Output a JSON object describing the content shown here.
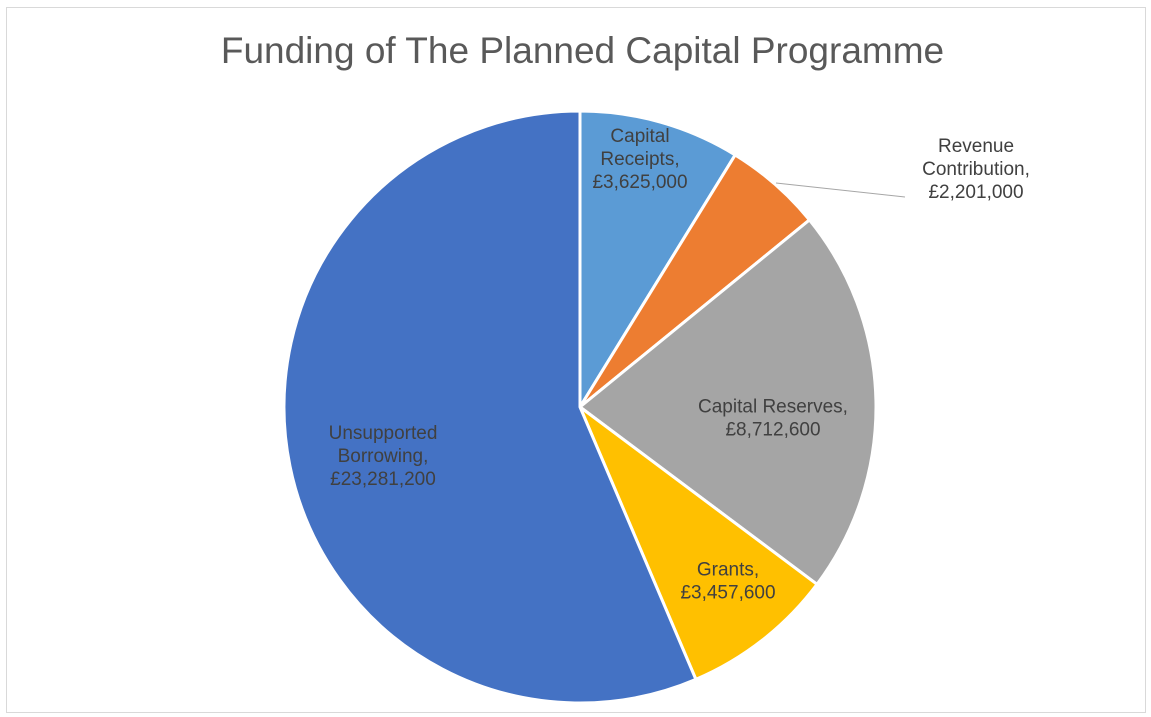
{
  "chart_data": {
    "type": "pie",
    "title": "Funding of The Planned Capital Programme",
    "slices": [
      {
        "category": "Capital Receipts",
        "value": 3625000,
        "label_lines": [
          "Capital",
          "Receipts,",
          "£3,625,000"
        ],
        "color": "#5B9BD5"
      },
      {
        "category": "Revenue Contribution",
        "value": 2201000,
        "label_lines": [
          "Revenue",
          "Contribution,",
          "£2,201,000"
        ],
        "color": "#ED7D31"
      },
      {
        "category": "Capital Reserves",
        "value": 8712600,
        "label_lines": [
          "Capital Reserves,",
          "£8,712,600"
        ],
        "color": "#A5A5A5"
      },
      {
        "category": "Grants",
        "value": 3457600,
        "label_lines": [
          "Grants,",
          "£3,457,600"
        ],
        "color": "#FFC000"
      },
      {
        "category": "Unsupported Borrowing",
        "value": 23281200,
        "label_lines": [
          "Unsupported",
          "Borrowing,",
          "£23,281,200"
        ],
        "color": "#4472C4"
      }
    ],
    "legend": "none",
    "start_angle": "12 o'clock",
    "direction": "clockwise"
  }
}
